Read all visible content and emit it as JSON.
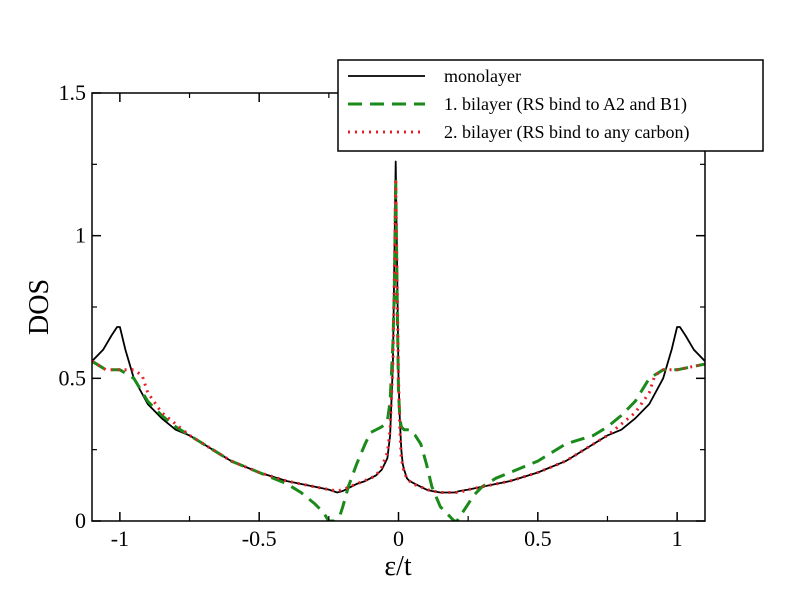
{
  "chart_data": {
    "type": "line",
    "title": "",
    "xlabel": "ε/t",
    "ylabel": "DOS",
    "xlim": [
      -1.1,
      1.1
    ],
    "ylim": [
      0,
      1.5
    ],
    "grid": false,
    "legend_position": "top-right",
    "x_ticks": [
      {
        "value": -1,
        "label": "-1"
      },
      {
        "value": -0.5,
        "label": "-0.5"
      },
      {
        "value": 0,
        "label": "0"
      },
      {
        "value": 0.5,
        "label": "0.5"
      },
      {
        "value": 1,
        "label": "1"
      }
    ],
    "y_ticks": [
      {
        "value": 0,
        "label": "0"
      },
      {
        "value": 0.5,
        "label": "0.5"
      },
      {
        "value": 1,
        "label": "1"
      },
      {
        "value": 1.5,
        "label": "1.5"
      }
    ],
    "series": [
      {
        "name": "monolayer",
        "color": "#000000",
        "style": "solid",
        "x": [
          -1.1,
          -1.06,
          -1.03,
          -1.01,
          -1.0,
          -0.98,
          -0.95,
          -0.9,
          -0.85,
          -0.8,
          -0.75,
          -0.7,
          -0.6,
          -0.5,
          -0.4,
          -0.3,
          -0.25,
          -0.22,
          -0.2,
          -0.18,
          -0.15,
          -0.12,
          -0.1,
          -0.08,
          -0.06,
          -0.04,
          -0.03,
          -0.02,
          -0.015,
          -0.01,
          -0.005,
          0.0,
          0.005,
          0.01,
          0.015,
          0.02,
          0.03,
          0.04,
          0.06,
          0.08,
          0.1,
          0.12,
          0.15,
          0.18,
          0.2,
          0.22,
          0.25,
          0.3,
          0.4,
          0.5,
          0.6,
          0.7,
          0.75,
          0.8,
          0.85,
          0.9,
          0.95,
          0.98,
          1.0,
          1.01,
          1.03,
          1.06,
          1.1
        ],
        "y": [
          0.56,
          0.6,
          0.65,
          0.68,
          0.68,
          0.6,
          0.5,
          0.41,
          0.36,
          0.32,
          0.3,
          0.27,
          0.21,
          0.17,
          0.14,
          0.12,
          0.11,
          0.1,
          0.105,
          0.115,
          0.13,
          0.14,
          0.15,
          0.16,
          0.18,
          0.22,
          0.3,
          0.55,
          0.9,
          1.26,
          0.9,
          0.5,
          0.35,
          0.25,
          0.2,
          0.18,
          0.15,
          0.14,
          0.13,
          0.12,
          0.11,
          0.105,
          0.1,
          0.1,
          0.1,
          0.105,
          0.11,
          0.12,
          0.14,
          0.17,
          0.21,
          0.27,
          0.3,
          0.32,
          0.36,
          0.41,
          0.5,
          0.6,
          0.68,
          0.68,
          0.65,
          0.6,
          0.56
        ]
      },
      {
        "name": "1. bilayer (RS bind to A2 and B1)",
        "color": "#1a8a1a",
        "style": "dashed",
        "x": [
          -1.1,
          -1.05,
          -1.0,
          -0.95,
          -0.9,
          -0.85,
          -0.8,
          -0.75,
          -0.7,
          -0.6,
          -0.5,
          -0.4,
          -0.35,
          -0.3,
          -0.27,
          -0.25,
          -0.23,
          -0.21,
          -0.2,
          -0.18,
          -0.15,
          -0.12,
          -0.1,
          -0.08,
          -0.06,
          -0.04,
          -0.03,
          -0.02,
          -0.015,
          -0.01,
          -0.005,
          0.0,
          0.005,
          0.01,
          0.02,
          0.04,
          0.06,
          0.08,
          0.1,
          0.12,
          0.15,
          0.18,
          0.2,
          0.21,
          0.23,
          0.25,
          0.27,
          0.3,
          0.35,
          0.4,
          0.5,
          0.6,
          0.7,
          0.75,
          0.8,
          0.85,
          0.9,
          0.95,
          1.0,
          1.05,
          1.1
        ],
        "y": [
          0.56,
          0.53,
          0.53,
          0.5,
          0.42,
          0.37,
          0.33,
          0.3,
          0.27,
          0.21,
          0.17,
          0.13,
          0.1,
          0.06,
          0.03,
          0.0,
          0.0,
          0.02,
          0.05,
          0.12,
          0.2,
          0.27,
          0.31,
          0.32,
          0.33,
          0.35,
          0.42,
          0.62,
          0.8,
          1.2,
          0.8,
          0.45,
          0.36,
          0.33,
          0.32,
          0.32,
          0.3,
          0.27,
          0.2,
          0.12,
          0.05,
          0.02,
          0.0,
          0.0,
          0.03,
          0.06,
          0.09,
          0.12,
          0.15,
          0.17,
          0.21,
          0.27,
          0.3,
          0.33,
          0.37,
          0.42,
          0.5,
          0.53,
          0.53,
          0.54,
          0.55
        ]
      },
      {
        "name": "2. bilayer (RS bind to any carbon)",
        "color": "#e8202a",
        "style": "dotted",
        "x": [
          -1.1,
          -1.05,
          -1.0,
          -0.95,
          -0.92,
          -0.9,
          -0.85,
          -0.8,
          -0.75,
          -0.7,
          -0.6,
          -0.5,
          -0.4,
          -0.3,
          -0.25,
          -0.22,
          -0.2,
          -0.15,
          -0.1,
          -0.08,
          -0.06,
          -0.04,
          -0.03,
          -0.02,
          -0.015,
          -0.01,
          -0.005,
          0.0,
          0.005,
          0.01,
          0.02,
          0.03,
          0.05,
          0.08,
          0.1,
          0.15,
          0.2,
          0.22,
          0.25,
          0.3,
          0.4,
          0.5,
          0.6,
          0.7,
          0.75,
          0.8,
          0.85,
          0.9,
          0.92,
          0.95,
          1.0,
          1.05,
          1.1
        ],
        "y": [
          0.56,
          0.53,
          0.53,
          0.53,
          0.51,
          0.45,
          0.38,
          0.34,
          0.3,
          0.27,
          0.21,
          0.17,
          0.14,
          0.12,
          0.11,
          0.105,
          0.11,
          0.13,
          0.15,
          0.16,
          0.19,
          0.24,
          0.32,
          0.55,
          0.85,
          1.2,
          0.85,
          0.5,
          0.32,
          0.22,
          0.17,
          0.15,
          0.13,
          0.12,
          0.11,
          0.1,
          0.1,
          0.1,
          0.11,
          0.12,
          0.14,
          0.17,
          0.21,
          0.27,
          0.3,
          0.34,
          0.38,
          0.45,
          0.51,
          0.53,
          0.53,
          0.54,
          0.55
        ]
      }
    ]
  }
}
